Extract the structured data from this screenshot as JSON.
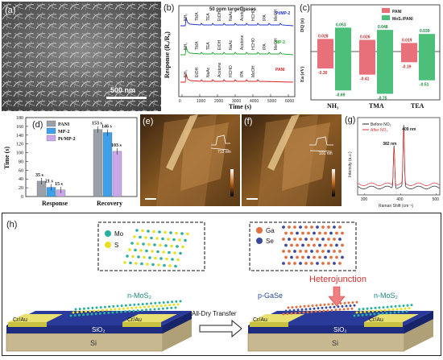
{
  "panel_labels": {
    "a": "(a)",
    "b": "(b)",
    "c": "(c)",
    "d": "(d)",
    "e": "(e)",
    "f": "(f)",
    "g": "(g)",
    "h": "(h)"
  },
  "panel_a": {
    "scale_bar": "500 nm"
  },
  "panel_b": {
    "header": "50 ppm target gases",
    "ylabel": "Response (Rₐ/R₉)",
    "xlabel": "Time (s)",
    "x_ticks": [
      "0",
      "1000",
      "2000",
      "3000",
      "4000",
      "5000",
      "6000"
    ],
    "series": [
      {
        "name": "Pt/MP-2",
        "color": "#2233cc",
        "gases": [
          "NH₃",
          "TMA",
          "TEA",
          "EtOH",
          "NaAc",
          "Acetone",
          "HCHO",
          "IPA",
          "MeOH"
        ]
      },
      {
        "name": "MP-2",
        "color": "#22aa33",
        "gases": [
          "NH₃",
          "TMA",
          "TEA",
          "EtOH",
          "NaAc",
          "Acetone",
          "HCHO",
          "IPA",
          "MeOH"
        ]
      },
      {
        "name": "PANI",
        "color": "#dd2222",
        "gases": [
          "NH₃",
          "EtOH",
          "NaAc",
          "Acetone",
          "HCHO",
          "IPA",
          "MeOH"
        ]
      }
    ]
  },
  "chart_data": [
    {
      "type": "bar",
      "panel": "c",
      "categories": [
        "NH₃",
        "TMA",
        "TEA"
      ],
      "series": [
        {
          "name": "PANI",
          "color": "#e8707a",
          "dq": [
            0.028,
            0.026,
            0.019
          ],
          "ea": [
            -0.3,
            -0.41,
            -0.19
          ]
        },
        {
          "name": "MoS₂/PANI",
          "color": "#4cc07a",
          "dq": [
            0.053,
            0.048,
            0.039
          ],
          "ea": [
            -0.69,
            -0.75,
            -0.51
          ]
        }
      ],
      "labels": {
        "dq": [
          [
            "0.028",
            "0.053"
          ],
          [
            "0.026",
            "0.048"
          ],
          [
            "0.019",
            "0.039"
          ]
        ],
        "ea": [
          [
            "-0.30",
            "-0.69"
          ],
          [
            "-0.41",
            "-0.75"
          ],
          [
            "-0.19",
            "-0.51"
          ]
        ]
      },
      "ylabel_top": "DQ (e)",
      "ylabel_bottom": "Ea (eV)"
    },
    {
      "type": "bar",
      "panel": "d",
      "categories": [
        "Response",
        "Recovery"
      ],
      "ylabel": "Time (s)",
      "ylim": [
        0,
        180
      ],
      "y_ticks": [
        "0",
        "20",
        "40",
        "60",
        "80",
        "100",
        "120",
        "140",
        "160",
        "180"
      ],
      "series": [
        {
          "name": "PANI",
          "color": "#9aa0a8",
          "values": [
            35,
            153
          ],
          "labels": [
            "35 s",
            "153 s"
          ]
        },
        {
          "name": "MP-2",
          "color": "#3ea0e8",
          "values": [
            21,
            146
          ],
          "labels": [
            "21 s",
            "146 s"
          ]
        },
        {
          "name": "Pt/MP-2",
          "color": "#c8a8e8",
          "values": [
            15,
            103
          ],
          "labels": [
            "15 s",
            "103 s"
          ]
        }
      ]
    },
    {
      "type": "line",
      "panel": "g",
      "xlabel": "Raman Shift (cm⁻¹)",
      "ylabel": "Intensity (a.u.)",
      "x_ticks": [
        "300",
        "400",
        "500"
      ],
      "xlim": [
        280,
        510
      ],
      "series": [
        {
          "name": "Before NO₂",
          "color": "#222222",
          "peaks": [
            382,
            409
          ],
          "peak_heights": [
            0.62,
            0.88
          ]
        },
        {
          "name": "After NO₂",
          "color": "#dd3333",
          "peaks": [
            382,
            409
          ],
          "peak_heights": [
            0.55,
            0.78
          ]
        }
      ],
      "annotations": [
        "382 nm",
        "409 nm"
      ]
    }
  ],
  "panel_e": {
    "height_label": "713 nm"
  },
  "panel_f": {
    "height_label": "101 nm"
  },
  "panel_h": {
    "legend_left": {
      "items": [
        "Mo",
        "S"
      ],
      "colors": [
        "#2ab0a0",
        "#e8e020"
      ]
    },
    "legend_right": {
      "items": [
        "Ga",
        "Se"
      ],
      "colors": [
        "#e07040",
        "#3a4aa0"
      ]
    },
    "left_labels": {
      "contact": "Cr/Au",
      "contact2": "Cr/Au",
      "film": "n-MoS₂",
      "oxide": "SiO₂",
      "substrate": "Si"
    },
    "right_labels": {
      "contact": "Cr/Au",
      "contact2": "Cr/Au",
      "film_left": "p-GaSe",
      "film_right": "n-MoS₂",
      "oxide": "SiO₂",
      "substrate": "Si",
      "junction": "Heterojunction"
    },
    "arrow_label": "All-Dry Transfer"
  }
}
